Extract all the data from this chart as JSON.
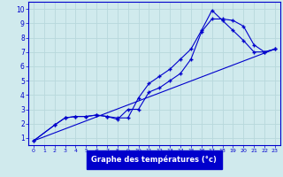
{
  "xlabel": "Graphe des températures (°c)",
  "xlim": [
    -0.5,
    23.5
  ],
  "ylim": [
    0.5,
    10.5
  ],
  "xticks": [
    0,
    1,
    2,
    3,
    4,
    5,
    6,
    7,
    8,
    9,
    10,
    11,
    12,
    13,
    14,
    15,
    16,
    17,
    18,
    19,
    20,
    21,
    22,
    23
  ],
  "yticks": [
    1,
    2,
    3,
    4,
    5,
    6,
    7,
    8,
    9,
    10
  ],
  "background_color": "#d0eaed",
  "line_color": "#0000cc",
  "grid_color": "#b8d8dc",
  "line1_x": [
    0,
    2,
    3,
    4,
    5,
    6,
    7,
    8,
    9,
    10,
    11,
    12,
    13,
    14,
    15,
    16,
    17,
    18,
    19,
    20,
    21,
    22,
    23
  ],
  "line1_y": [
    0.8,
    1.9,
    2.4,
    2.5,
    2.5,
    2.6,
    2.5,
    2.4,
    2.4,
    3.8,
    4.8,
    5.3,
    5.8,
    6.5,
    7.2,
    8.5,
    9.9,
    9.2,
    8.5,
    7.8,
    7.0,
    7.0,
    7.2
  ],
  "line2_x": [
    0,
    2,
    3,
    4,
    5,
    6,
    7,
    8,
    9,
    10,
    11,
    12,
    13,
    14,
    15,
    16,
    17,
    18,
    19,
    20,
    21,
    22,
    23
  ],
  "line2_y": [
    0.8,
    1.9,
    2.4,
    2.5,
    2.5,
    2.6,
    2.5,
    2.3,
    3.0,
    3.0,
    4.2,
    4.5,
    5.0,
    5.5,
    6.5,
    8.4,
    9.3,
    9.3,
    9.2,
    8.8,
    7.5,
    7.0,
    7.2
  ],
  "line3_x": [
    0,
    23
  ],
  "line3_y": [
    0.8,
    7.2
  ]
}
